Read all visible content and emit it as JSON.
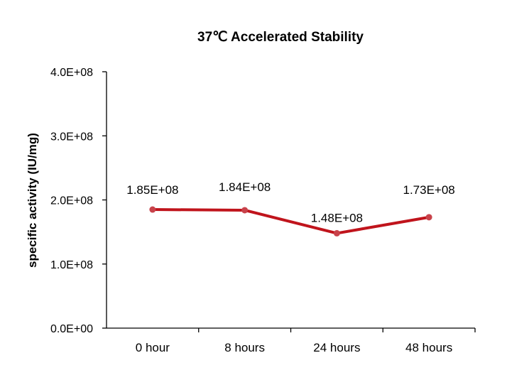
{
  "chart_data": {
    "type": "line",
    "title": "37℃ Accelerated  Stability",
    "xlabel": "",
    "ylabel": "specific activity (IU/mg)",
    "categories": [
      "0 hour",
      "8 hours",
      "24 hours",
      "48 hours"
    ],
    "series": [
      {
        "values": [
          185000000,
          184000000,
          148000000,
          173000000
        ],
        "data_labels": [
          "1.85E+08",
          "1.84E+08",
          "1.48E+08",
          "1.73E+08"
        ],
        "color": "#c0141c",
        "marker_color": "#c8424a"
      }
    ],
    "ylim": [
      0,
      400000000
    ],
    "yticks": [
      0,
      100000000,
      200000000,
      300000000,
      400000000
    ],
    "ytick_labels": [
      "0.0E+00",
      "1.0E+08",
      "2.0E+08",
      "3.0E+08",
      "4.0E+08"
    ],
    "grid": false,
    "legend": "none"
  }
}
